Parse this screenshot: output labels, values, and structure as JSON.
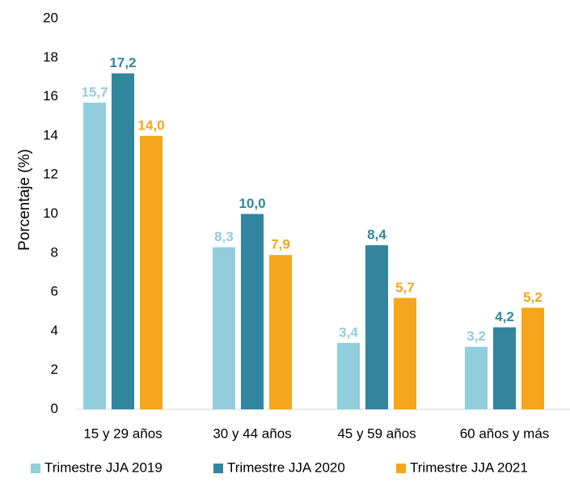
{
  "chart_data": {
    "type": "bar",
    "title": "",
    "xlabel": "",
    "ylabel": "Porcentaje (%)",
    "ylim": [
      0,
      20
    ],
    "yticks": [
      "0",
      "2",
      "4",
      "6",
      "8",
      "10",
      "12",
      "14",
      "16",
      "18",
      "20"
    ],
    "grid": false,
    "legend_position": "bottom",
    "categories": [
      "15 y 29 años",
      "30 y 44 años",
      "45 y 59 años",
      "60 años y más"
    ],
    "series": [
      {
        "name": "Trimestre JJA 2019",
        "color": "#92CDDC",
        "values": [
          15.7,
          8.3,
          3.4,
          3.2
        ],
        "labels": [
          "15,7",
          "8,3",
          "3,4",
          "3,2"
        ]
      },
      {
        "name": "Trimestre JJA 2020",
        "color": "#31859C",
        "values": [
          17.2,
          10.0,
          8.4,
          4.2
        ],
        "labels": [
          "17,2",
          "10,0",
          "8,4",
          "4,2"
        ]
      },
      {
        "name": "Trimestre JJA 2021",
        "color": "#F5A61A",
        "values": [
          14.0,
          7.9,
          5.7,
          5.2
        ],
        "labels": [
          "14,0",
          "7,9",
          "5,7",
          "5,2"
        ]
      }
    ]
  }
}
